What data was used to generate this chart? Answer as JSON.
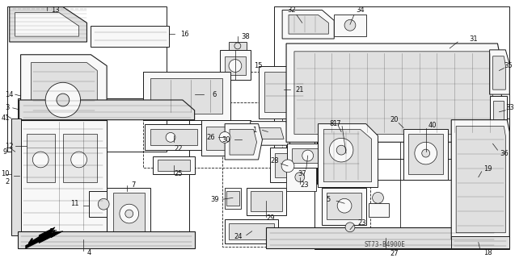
{
  "background_color": "#ffffff",
  "diagram_code": "ST73-B4900E",
  "fig_width": 6.37,
  "fig_height": 3.2,
  "dpi": 100,
  "line_color": "#1a1a1a",
  "text_color": "#111111",
  "label_fontsize": 6.0,
  "border_color": "#333333",
  "part_fill": "#f8f8f8",
  "detail_fill": "#e0e0e0"
}
